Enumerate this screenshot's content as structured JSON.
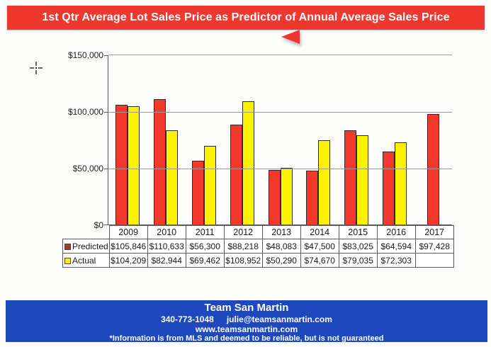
{
  "banner": {
    "title": "1st Qtr Average Lot Sales Price as Predictor of Annual Average Sales Price",
    "bg_color": "#ef372e",
    "arrow_color": "#ef372e"
  },
  "chart_data": {
    "type": "bar",
    "title": "1st Qtr Average Lot Sales Price as Predictor of Annual Average Sales Price",
    "categories": [
      "2009",
      "2010",
      "2011",
      "2012",
      "2013",
      "2014",
      "2015",
      "2016",
      "2017"
    ],
    "series": [
      {
        "name": "Predicted",
        "color": "#f2392b",
        "legend_color": "#a8392f",
        "values": [
          105846,
          110633,
          56300,
          88218,
          48083,
          47500,
          83025,
          64594,
          97428
        ],
        "labels": [
          "$105,846",
          "$110,633",
          "$56,300",
          "$88,218",
          "$48,083",
          "$47,500",
          "$83,025",
          "$64,594",
          "$97,428"
        ]
      },
      {
        "name": "Actual",
        "color": "#fff200",
        "legend_color": "#fff200",
        "values": [
          104209,
          82944,
          69462,
          108952,
          50290,
          74670,
          79035,
          72303,
          null
        ],
        "labels": [
          "$104,209",
          "$82,944",
          "$69,462",
          "$108,952",
          "$50,290",
          "$74,670",
          "$79,035",
          "$72,303",
          ""
        ]
      }
    ],
    "ylim": [
      0,
      150000
    ],
    "y_ticks": [
      {
        "value": 150000,
        "label": "$150,000"
      },
      {
        "value": 100000,
        "label": "$100,000"
      },
      {
        "value": 50000,
        "label": "$50,000"
      },
      {
        "value": 0,
        "label": "$0"
      }
    ],
    "grid": true,
    "legend_position": "table-left"
  },
  "footer": {
    "team": "Team San Martin",
    "phone": "340-773-1048",
    "email": "julie@teamsanmartin.com",
    "website": "www.teamsanmartin.com",
    "disclaimer": "*Information is from MLS and deemed to be reliable, but is not guaranteed",
    "bg_color": "#1e48bd"
  }
}
